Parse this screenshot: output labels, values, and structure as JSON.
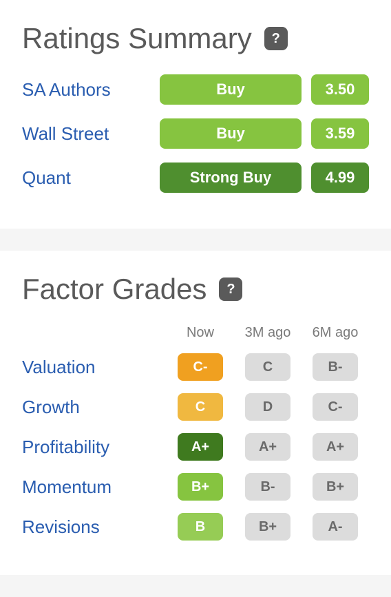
{
  "colors": {
    "link": "#2a5db0",
    "help_bg": "#5a5a5a",
    "muted_pill_bg": "#dcdcdc",
    "muted_pill_text": "#6a6a6a"
  },
  "ratings_summary": {
    "title": "Ratings Summary",
    "rows": [
      {
        "label": "SA Authors",
        "rating": "Buy",
        "score": "3.50",
        "color": "#86c440"
      },
      {
        "label": "Wall Street",
        "rating": "Buy",
        "score": "3.59",
        "color": "#86c440"
      },
      {
        "label": "Quant",
        "rating": "Strong Buy",
        "score": "4.99",
        "color": "#4f8f2f"
      }
    ]
  },
  "factor_grades": {
    "title": "Factor Grades",
    "columns": [
      "Now",
      "3M ago",
      "6M ago"
    ],
    "rows": [
      {
        "label": "Valuation",
        "now": "C-",
        "now_color": "#f0a020",
        "m3": "C",
        "m6": "B-"
      },
      {
        "label": "Growth",
        "now": "C",
        "now_color": "#f0b840",
        "m3": "D",
        "m6": "C-"
      },
      {
        "label": "Profitability",
        "now": "A+",
        "now_color": "#3f7a1f",
        "m3": "A+",
        "m6": "A+"
      },
      {
        "label": "Momentum",
        "now": "B+",
        "now_color": "#86c440",
        "m3": "B-",
        "m6": "B+"
      },
      {
        "label": "Revisions",
        "now": "B",
        "now_color": "#96cc55",
        "m3": "B+",
        "m6": "A-"
      }
    ]
  }
}
